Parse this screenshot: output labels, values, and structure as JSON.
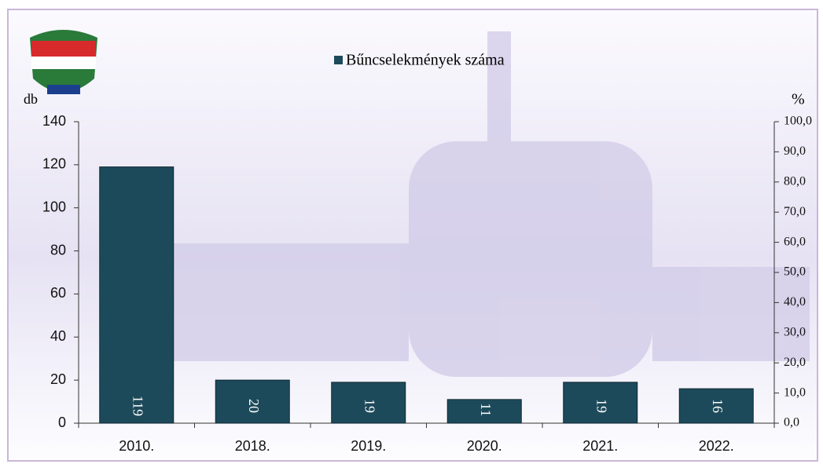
{
  "chart_data": {
    "type": "bar",
    "title": "Bűncselekmények száma",
    "y_label": "db",
    "y2_label": "%",
    "categories": [
      "2010.",
      "2018.",
      "2019.",
      "2020.",
      "2021.",
      "2022."
    ],
    "values": [
      119,
      20,
      19,
      11,
      19,
      16
    ],
    "color": "#1d4a5a",
    "ylim": [
      0,
      140
    ],
    "yticks": [
      0,
      20,
      40,
      60,
      80,
      100,
      120,
      140
    ],
    "y2lim": [
      0,
      100
    ],
    "y2ticks": [
      {
        "value": 0,
        "label": "0,0"
      },
      {
        "value": 10,
        "label": "10,0"
      },
      {
        "value": 20,
        "label": "20,0"
      },
      {
        "value": 30,
        "label": "30,0"
      },
      {
        "value": 40,
        "label": "40,0"
      },
      {
        "value": 50,
        "label": "50,0"
      },
      {
        "value": 60,
        "label": "60,0"
      },
      {
        "value": 70,
        "label": "70,0"
      },
      {
        "value": 80,
        "label": "80,0"
      },
      {
        "value": 90,
        "label": "90,0"
      },
      {
        "value": 100,
        "label": "100,0"
      }
    ]
  }
}
